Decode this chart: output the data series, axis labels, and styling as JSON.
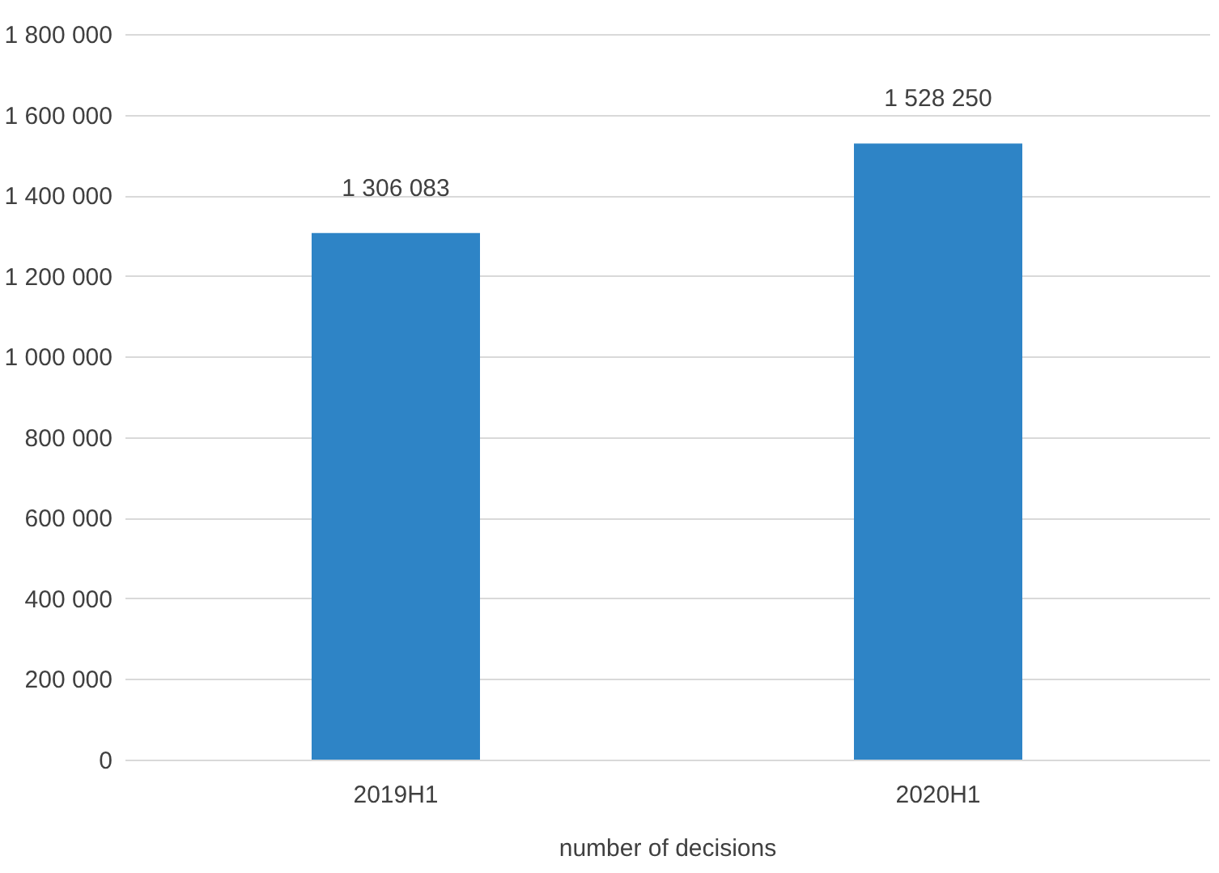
{
  "chart_data": {
    "type": "bar",
    "xlabel": "number of decisions",
    "categories": [
      "2019H1",
      "2020H1"
    ],
    "series": [
      {
        "color": "#2e84c6",
        "values": [
          1306083,
          1528250
        ]
      }
    ],
    "ylim": [
      0,
      1800000
    ],
    "yticks": [
      {
        "value": 0,
        "label": "0"
      },
      {
        "value": 200000,
        "label": "200 000"
      },
      {
        "value": 400000,
        "label": "400 000"
      },
      {
        "value": 600000,
        "label": "600 000"
      },
      {
        "value": 800000,
        "label": "800 000"
      },
      {
        "value": 1000000,
        "label": "1 000 000"
      },
      {
        "value": 1200000,
        "label": "1 200 000"
      },
      {
        "value": 1400000,
        "label": "1 400 000"
      },
      {
        "value": 1600000,
        "label": "1 600 000"
      },
      {
        "value": 1800000,
        "label": "1 800 000"
      }
    ],
    "value_labels": [
      "1 306 083",
      "1 528 250"
    ],
    "grid": "y"
  }
}
